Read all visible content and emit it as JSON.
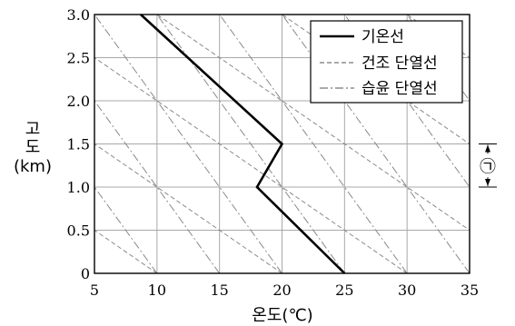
{
  "chart_data": {
    "type": "line",
    "xlabel": "온도(℃)",
    "ylabel_lines": [
      "고",
      "도",
      "(km)"
    ],
    "xlim": [
      5,
      35
    ],
    "ylim": [
      0,
      3.0
    ],
    "x_ticks": [
      5,
      10,
      15,
      20,
      25,
      30,
      35
    ],
    "y_ticks": [
      0,
      0.5,
      1.0,
      1.5,
      2.0,
      2.5,
      3.0
    ],
    "x_tick_labels": [
      "5",
      "10",
      "15",
      "20",
      "25",
      "30",
      "35"
    ],
    "y_tick_labels": [
      "0",
      "0.5",
      "1.0",
      "1.5",
      "2.0",
      "2.5",
      "3.0"
    ],
    "grid": true,
    "legend_position": "top-right",
    "series": [
      {
        "name": "기온선",
        "style": "solid",
        "color": "#000000",
        "x": [
          25,
          18,
          20,
          8.7
        ],
        "y": [
          0,
          1.0,
          1.5,
          3.0
        ]
      }
    ],
    "dry_adiabat_lapse_per_km": 10,
    "moist_adiabat_lapse_per_km": 5,
    "dry_adiabat_label": "건조 단열선",
    "moist_adiabat_label": "습윤 단열선",
    "annotation": {
      "label": "㉠",
      "y_range": [
        1.0,
        1.5
      ]
    }
  }
}
